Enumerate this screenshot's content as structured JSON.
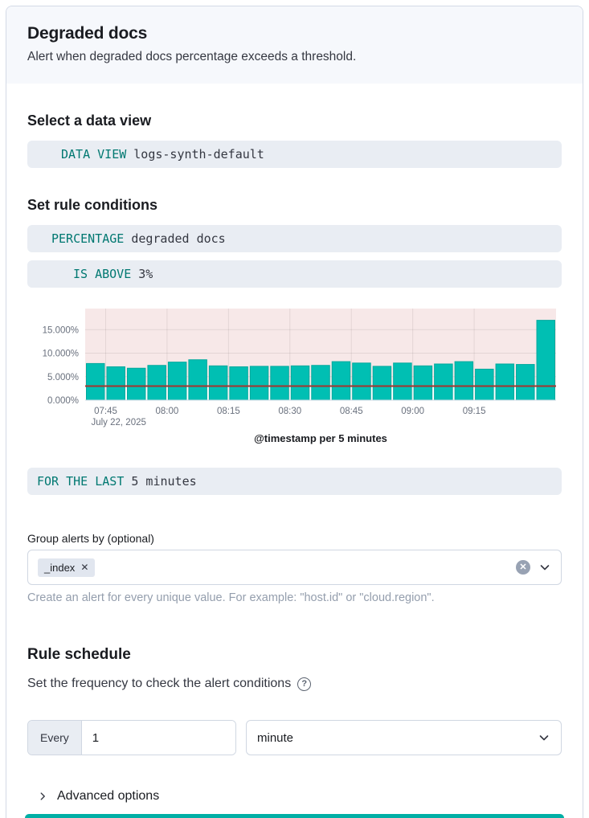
{
  "header": {
    "title": "Degraded docs",
    "subtitle": "Alert when degraded docs percentage exceeds a threshold."
  },
  "data_view_section": {
    "heading": "Select a data view",
    "expression": {
      "keyword": "DATA VIEW",
      "value": "logs-synth-default"
    }
  },
  "conditions_section": {
    "heading": "Set rule conditions",
    "aggregation_expression": {
      "keyword": "PERCENTAGE",
      "value": "degraded docs"
    },
    "threshold_expression": {
      "keyword": "IS ABOVE",
      "value": "3%"
    },
    "window_expression": {
      "keyword": "FOR THE LAST",
      "value": "5 minutes"
    }
  },
  "chart_data": {
    "type": "bar",
    "title": "",
    "xlabel": "@timestamp per 5 minutes",
    "ylabel": "",
    "x_date_label": "July 22, 2025",
    "x_tick_labels": [
      "07:45",
      "08:00",
      "08:15",
      "08:30",
      "08:45",
      "09:00",
      "09:15"
    ],
    "tick_slot_indices": [
      1,
      4,
      7,
      10,
      13,
      16,
      19
    ],
    "y_ticks": [
      0,
      5,
      10,
      15
    ],
    "y_tick_labels": [
      "0.000%",
      "5.000%",
      "10.000%",
      "15.000%"
    ],
    "ylim": [
      0,
      19.5
    ],
    "threshold_value": 3,
    "values": [
      7.8,
      7.1,
      6.8,
      7.4,
      8.1,
      8.6,
      7.3,
      7.1,
      7.2,
      7.2,
      7.3,
      7.4,
      8.2,
      7.9,
      7.2,
      7.9,
      7.3,
      7.7,
      8.2,
      6.6,
      7.7,
      7.6,
      17.0
    ],
    "colors": {
      "bar": "#00BFB3",
      "bar_stroke": "#00A99D",
      "threshold_line": "#A5352F",
      "above_threshold_fill": "#F7E8E8",
      "grid": "rgba(0,0,0,0.08)",
      "baseline": "#D3DAE6"
    },
    "legend": "off",
    "grid": "on"
  },
  "group_by": {
    "label": "Group alerts by (optional)",
    "selected": [
      {
        "label": "_index"
      }
    ],
    "tag_close": "✕",
    "clear_icon": "✕",
    "help_text": "Create an alert for every unique value. For example: \"host.id\" or \"cloud.region\"."
  },
  "schedule": {
    "heading": "Rule schedule",
    "description": "Set the frequency to check the alert conditions",
    "help_icon": "?",
    "every_label": "Every",
    "interval_value": "1",
    "interval_unit": "minute"
  },
  "advanced": {
    "label": "Advanced options"
  },
  "colors": {
    "accent_teal": "#00AFA5",
    "expression_keyword": "#007871",
    "expression_bg": "#E9EDF3"
  }
}
